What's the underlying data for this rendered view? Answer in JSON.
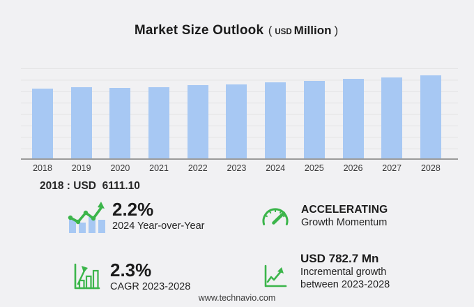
{
  "title": {
    "main": "Market Size Outlook",
    "open": "(",
    "currency": "USD",
    "unit": "Million",
    "close": ")"
  },
  "chart_data": {
    "type": "bar",
    "title": "Market Size Outlook (USD Million)",
    "categories": [
      "2018",
      "2019",
      "2020",
      "2021",
      "2022",
      "2023",
      "2024",
      "2025",
      "2026",
      "2027",
      "2028"
    ],
    "values": [
      6111.1,
      6262.0,
      6154.0,
      6258.0,
      6405.0,
      6497.6,
      6640.6,
      6793.3,
      6949.7,
      7109.5,
      7280.3
    ],
    "unit": "USD Million",
    "xlabel": "",
    "ylabel": "",
    "ylim": [
      0,
      8000
    ],
    "gridline_step": 1000,
    "grid": true,
    "legend_position": "none",
    "bar_color": "#a7c8f3"
  },
  "base_year_note": "2018 : USD  6111.10",
  "stats": {
    "yoy": {
      "value": "2.2%",
      "label": "2024 Year-over-Year"
    },
    "momentum": {
      "value": "ACCELERATING",
      "label": "Growth Momentum"
    },
    "cagr": {
      "value": "2.3%",
      "label": "CAGR 2023-2028"
    },
    "incremental": {
      "value": "USD 782.7 Mn",
      "label": "Incremental growth between 2023-2028"
    }
  },
  "footer": {
    "url": "www.technavio.com"
  },
  "colors": {
    "background": "#f1f1f3",
    "bar": "#a7c8f3",
    "accent_green": "#3bb54a",
    "grid_line": "#e3e3e4",
    "axis_line": "#9a9a9a",
    "text_dark": "#1b1b1b"
  }
}
